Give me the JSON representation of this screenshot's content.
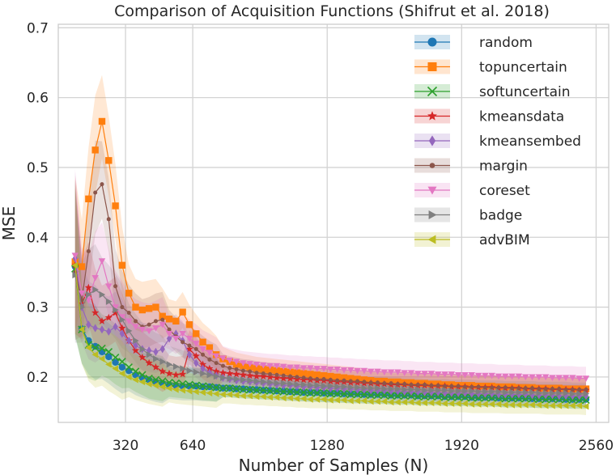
{
  "chart_data": {
    "type": "line",
    "title": "Comparison of Acquisition Functions (Shifrut et al. 2018)",
    "xlabel": "Number of Samples (N)",
    "ylabel": "MSE",
    "xlim": [
      0,
      2620
    ],
    "ylim": [
      0.135,
      0.705
    ],
    "xticks": [
      320,
      640,
      1280,
      1920,
      2560
    ],
    "xtick_labels": [
      "320",
      "640",
      "1280",
      "1920",
      "2560"
    ],
    "yticks": [
      0.2,
      0.3,
      0.4,
      0.5,
      0.6,
      0.7
    ],
    "ytick_labels": [
      "0.2",
      "0.3",
      "0.4",
      "0.5",
      "0.6",
      "0.7"
    ],
    "grid": true,
    "legend_position": "top-right",
    "x": [
      80,
      112,
      144,
      176,
      208,
      240,
      272,
      304,
      336,
      368,
      400,
      432,
      464,
      496,
      528,
      560,
      592,
      624,
      656,
      688,
      720,
      752,
      784,
      816,
      848,
      880,
      912,
      944,
      976,
      1008,
      1040,
      1072,
      1104,
      1136,
      1168,
      1200,
      1232,
      1264,
      1296,
      1328,
      1360,
      1392,
      1424,
      1456,
      1488,
      1520,
      1552,
      1584,
      1616,
      1648,
      1680,
      1712,
      1744,
      1776,
      1808,
      1840,
      1872,
      1904,
      1936,
      1968,
      2000,
      2032,
      2064,
      2096,
      2128,
      2160,
      2192,
      2224,
      2256,
      2288,
      2320,
      2352,
      2384,
      2416,
      2448,
      2480,
      2512
    ],
    "series": [
      {
        "name": "random",
        "color": "#1f77b4",
        "marker": "circle",
        "values": [
          0.358,
          0.269,
          0.252,
          0.244,
          0.236,
          0.229,
          0.221,
          0.214,
          0.209,
          0.203,
          0.199,
          0.196,
          0.193,
          0.191,
          0.189,
          0.188,
          0.187,
          0.187,
          0.187,
          0.186,
          0.186,
          0.185,
          0.184,
          0.184,
          0.183,
          0.183,
          0.182,
          0.182,
          0.181,
          0.181,
          0.18,
          0.18,
          0.179,
          0.179,
          0.178,
          0.178,
          0.178,
          0.177,
          0.177,
          0.177,
          0.176,
          0.176,
          0.176,
          0.175,
          0.175,
          0.175,
          0.175,
          0.174,
          0.174,
          0.174,
          0.174,
          0.173,
          0.173,
          0.173,
          0.173,
          0.172,
          0.172,
          0.172,
          0.172,
          0.171,
          0.171,
          0.171,
          0.171,
          0.17,
          0.17,
          0.17,
          0.17,
          0.17,
          0.169,
          0.169,
          0.169,
          0.169,
          0.169,
          0.168,
          0.168,
          0.168,
          0.168
        ]
      },
      {
        "name": "topuncertain",
        "color": "#ff7f0e",
        "marker": "square",
        "values": [
          0.365,
          0.358,
          0.455,
          0.525,
          0.566,
          0.51,
          0.445,
          0.36,
          0.32,
          0.3,
          0.296,
          0.298,
          0.3,
          0.287,
          0.283,
          0.28,
          0.293,
          0.275,
          0.262,
          0.25,
          0.242,
          0.232,
          0.226,
          0.222,
          0.218,
          0.216,
          0.214,
          0.212,
          0.211,
          0.21,
          0.209,
          0.208,
          0.207,
          0.206,
          0.205,
          0.204,
          0.203,
          0.202,
          0.201,
          0.2,
          0.199,
          0.198,
          0.197,
          0.196,
          0.195,
          0.194,
          0.194,
          0.193,
          0.193,
          0.192,
          0.192,
          0.191,
          0.191,
          0.19,
          0.19,
          0.189,
          0.189,
          0.188,
          0.188,
          0.188,
          0.187,
          0.187,
          0.187,
          0.186,
          0.186,
          0.186,
          0.185,
          0.185,
          0.185,
          0.184,
          0.184,
          0.184,
          0.184,
          0.183,
          0.183,
          0.183,
          0.183
        ]
      },
      {
        "name": "softuncertain",
        "color": "#2ca02c",
        "marker": "x",
        "values": [
          0.355,
          0.268,
          0.246,
          0.242,
          0.241,
          0.236,
          0.228,
          0.222,
          0.214,
          0.208,
          0.203,
          0.198,
          0.196,
          0.194,
          0.192,
          0.191,
          0.19,
          0.189,
          0.188,
          0.187,
          0.186,
          0.185,
          0.184,
          0.184,
          0.183,
          0.182,
          0.182,
          0.181,
          0.181,
          0.18,
          0.18,
          0.179,
          0.179,
          0.178,
          0.178,
          0.177,
          0.177,
          0.177,
          0.176,
          0.176,
          0.176,
          0.175,
          0.175,
          0.175,
          0.174,
          0.174,
          0.174,
          0.173,
          0.173,
          0.173,
          0.173,
          0.172,
          0.172,
          0.172,
          0.172,
          0.171,
          0.171,
          0.171,
          0.171,
          0.17,
          0.17,
          0.17,
          0.17,
          0.17,
          0.169,
          0.169,
          0.169,
          0.169,
          0.169,
          0.168,
          0.168,
          0.168,
          0.168,
          0.168,
          0.167,
          0.167,
          0.167
        ]
      },
      {
        "name": "kmeansdata",
        "color": "#d62728",
        "marker": "star",
        "values": [
          0.36,
          0.305,
          0.328,
          0.292,
          0.28,
          0.285,
          0.292,
          0.27,
          0.252,
          0.238,
          0.228,
          0.22,
          0.214,
          0.208,
          0.205,
          0.203,
          0.204,
          0.24,
          0.23,
          0.218,
          0.212,
          0.208,
          0.206,
          0.205,
          0.204,
          0.203,
          0.202,
          0.201,
          0.201,
          0.2,
          0.199,
          0.198,
          0.198,
          0.197,
          0.196,
          0.196,
          0.195,
          0.195,
          0.194,
          0.193,
          0.193,
          0.192,
          0.192,
          0.191,
          0.191,
          0.19,
          0.19,
          0.189,
          0.189,
          0.189,
          0.188,
          0.188,
          0.188,
          0.187,
          0.187,
          0.187,
          0.186,
          0.186,
          0.186,
          0.185,
          0.185,
          0.185,
          0.185,
          0.184,
          0.184,
          0.184,
          0.184,
          0.183,
          0.183,
          0.183,
          0.183,
          0.182,
          0.182,
          0.182,
          0.182,
          0.181,
          0.181
        ]
      },
      {
        "name": "kmeansembed",
        "color": "#9467bd",
        "marker": "diamond",
        "values": [
          0.37,
          0.3,
          0.275,
          0.27,
          0.268,
          0.265,
          0.272,
          0.262,
          0.252,
          0.245,
          0.24,
          0.238,
          0.236,
          0.24,
          0.255,
          0.262,
          0.252,
          0.232,
          0.22,
          0.212,
          0.206,
          0.202,
          0.199,
          0.197,
          0.195,
          0.194,
          0.193,
          0.192,
          0.191,
          0.19,
          0.189,
          0.188,
          0.188,
          0.187,
          0.186,
          0.186,
          0.185,
          0.185,
          0.184,
          0.184,
          0.183,
          0.183,
          0.182,
          0.182,
          0.181,
          0.181,
          0.181,
          0.18,
          0.18,
          0.179,
          0.179,
          0.179,
          0.178,
          0.178,
          0.178,
          0.177,
          0.177,
          0.177,
          0.177,
          0.176,
          0.176,
          0.176,
          0.176,
          0.175,
          0.175,
          0.175,
          0.175,
          0.175,
          0.174,
          0.174,
          0.174,
          0.174,
          0.173,
          0.173,
          0.173,
          0.173,
          0.173
        ]
      },
      {
        "name": "margin",
        "color": "#8c564b",
        "marker": "dot",
        "values": [
          0.35,
          0.31,
          0.38,
          0.464,
          0.476,
          0.426,
          0.33,
          0.3,
          0.292,
          0.28,
          0.272,
          0.275,
          0.28,
          0.282,
          0.268,
          0.258,
          0.25,
          0.245,
          0.24,
          0.232,
          0.225,
          0.22,
          0.216,
          0.213,
          0.211,
          0.209,
          0.208,
          0.206,
          0.205,
          0.204,
          0.203,
          0.202,
          0.201,
          0.2,
          0.199,
          0.198,
          0.197,
          0.197,
          0.196,
          0.195,
          0.195,
          0.194,
          0.194,
          0.193,
          0.192,
          0.192,
          0.191,
          0.191,
          0.19,
          0.19,
          0.189,
          0.189,
          0.189,
          0.188,
          0.188,
          0.187,
          0.187,
          0.187,
          0.186,
          0.186,
          0.186,
          0.185,
          0.185,
          0.185,
          0.185,
          0.184,
          0.184,
          0.184,
          0.184,
          0.183,
          0.183,
          0.183,
          0.183,
          0.182,
          0.182,
          0.182,
          0.182
        ]
      },
      {
        "name": "coreset",
        "color": "#e377c2",
        "marker": "triangle-down",
        "values": [
          0.374,
          0.32,
          0.31,
          0.342,
          0.366,
          0.33,
          0.3,
          0.286,
          0.28,
          0.272,
          0.268,
          0.266,
          0.27,
          0.275,
          0.262,
          0.255,
          0.262,
          0.255,
          0.248,
          0.24,
          0.235,
          0.23,
          0.227,
          0.224,
          0.222,
          0.22,
          0.219,
          0.218,
          0.217,
          0.216,
          0.216,
          0.215,
          0.214,
          0.214,
          0.213,
          0.213,
          0.212,
          0.212,
          0.211,
          0.211,
          0.21,
          0.21,
          0.209,
          0.209,
          0.208,
          0.208,
          0.207,
          0.207,
          0.207,
          0.206,
          0.206,
          0.205,
          0.205,
          0.205,
          0.204,
          0.204,
          0.204,
          0.203,
          0.203,
          0.203,
          0.202,
          0.202,
          0.202,
          0.201,
          0.201,
          0.201,
          0.201,
          0.2,
          0.2,
          0.2,
          0.2,
          0.199,
          0.199,
          0.199,
          0.199,
          0.198,
          0.198
        ]
      },
      {
        "name": "badge",
        "color": "#7f7f7f",
        "marker": "triangle-right",
        "values": [
          0.346,
          0.3,
          0.318,
          0.325,
          0.318,
          0.308,
          0.296,
          0.282,
          0.266,
          0.252,
          0.24,
          0.232,
          0.226,
          0.222,
          0.218,
          0.215,
          0.212,
          0.209,
          0.207,
          0.205,
          0.203,
          0.201,
          0.199,
          0.198,
          0.197,
          0.196,
          0.195,
          0.194,
          0.193,
          0.192,
          0.191,
          0.191,
          0.19,
          0.189,
          0.189,
          0.188,
          0.188,
          0.187,
          0.187,
          0.186,
          0.186,
          0.185,
          0.185,
          0.184,
          0.184,
          0.184,
          0.183,
          0.183,
          0.183,
          0.182,
          0.182,
          0.182,
          0.181,
          0.181,
          0.181,
          0.181,
          0.18,
          0.18,
          0.18,
          0.18,
          0.179,
          0.179,
          0.179,
          0.179,
          0.178,
          0.178,
          0.178,
          0.178,
          0.178,
          0.177,
          0.177,
          0.177,
          0.177,
          0.177,
          0.176,
          0.176,
          0.176
        ]
      },
      {
        "name": "advBIM",
        "color": "#bcbd22",
        "marker": "triangle-left",
        "values": [
          0.36,
          0.268,
          0.242,
          0.232,
          0.226,
          0.218,
          0.212,
          0.205,
          0.2,
          0.196,
          0.193,
          0.19,
          0.188,
          0.186,
          0.184,
          0.182,
          0.181,
          0.18,
          0.179,
          0.178,
          0.177,
          0.176,
          0.175,
          0.175,
          0.174,
          0.173,
          0.173,
          0.172,
          0.172,
          0.171,
          0.171,
          0.17,
          0.17,
          0.169,
          0.169,
          0.168,
          0.168,
          0.168,
          0.167,
          0.167,
          0.167,
          0.166,
          0.166,
          0.166,
          0.165,
          0.165,
          0.165,
          0.164,
          0.164,
          0.164,
          0.164,
          0.163,
          0.163,
          0.163,
          0.163,
          0.162,
          0.162,
          0.162,
          0.162,
          0.161,
          0.161,
          0.161,
          0.161,
          0.161,
          0.16,
          0.16,
          0.16,
          0.16,
          0.16,
          0.16,
          0.159,
          0.159,
          0.159,
          0.159,
          0.159,
          0.159,
          0.158
        ]
      }
    ]
  }
}
